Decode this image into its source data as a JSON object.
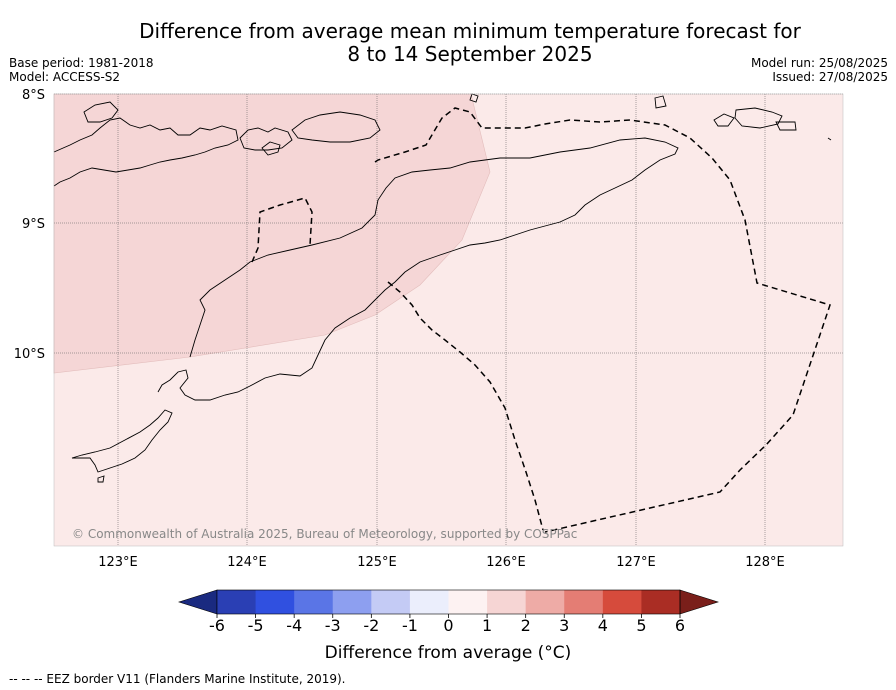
{
  "title": {
    "line1": "Difference from average mean minimum temperature forecast for",
    "line2": "8 to 14 September 2025"
  },
  "meta": {
    "base_period": "Base period: 1981-2018",
    "model": "Model: ACCESS-S2",
    "model_run": "Model run: 25/08/2025",
    "issued": "Issued: 27/08/2025"
  },
  "map": {
    "lat_labels": [
      "8°S",
      "9°S",
      "10°S"
    ],
    "lon_labels": [
      "123°E",
      "124°E",
      "125°E",
      "126°E",
      "127°E",
      "128°E"
    ],
    "copyright": "© Commonwealth of Australia 2025, Bureau of Meteorology, supported by COSPPac",
    "regions": [
      {
        "name": "1 to 2",
        "color": "#f5d6d6"
      },
      {
        "name": "0 to 1",
        "color": "#fbeae9"
      }
    ]
  },
  "colorbar": {
    "ticks": [
      "-6",
      "-5",
      "-4",
      "-3",
      "-2",
      "-1",
      "0",
      "1",
      "2",
      "3",
      "4",
      "5",
      "6"
    ],
    "colors": [
      "#1a2a80",
      "#2a3fb4",
      "#3050e0",
      "#5a75e6",
      "#8d9ff0",
      "#c4cbf5",
      "#ebeefc",
      "#fdf2f2",
      "#f6d5d4",
      "#eeaba6",
      "#e47d74",
      "#d64b3c",
      "#aa2d24",
      "#7a1f1a"
    ],
    "label": "Difference from average (°C)"
  },
  "footnote": "--  --  -- EEZ border V11 (Flanders Marine Institute, 2019)."
}
